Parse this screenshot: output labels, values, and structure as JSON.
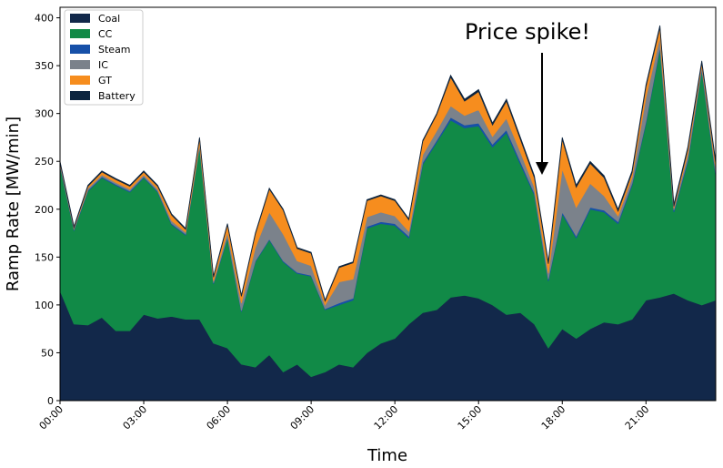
{
  "chart_data": {
    "type": "stacked-area",
    "xlabel": "Time",
    "ylabel": "Ramp Rate [MW/min]",
    "annotation": "Price spike!",
    "legend": "upper left",
    "x": [
      0,
      0.5,
      1,
      1.5,
      2,
      2.5,
      3,
      3.5,
      4,
      4.5,
      5,
      5.5,
      6,
      6.5,
      7,
      7.5,
      8,
      8.5,
      9,
      9.5,
      10,
      10.5,
      11,
      11.5,
      12,
      12.5,
      13,
      13.5,
      14,
      14.5,
      15,
      15.5,
      16,
      16.5,
      17,
      17.5,
      18,
      18.5,
      19,
      19.5,
      20,
      20.5,
      21,
      21.5,
      22,
      22.5,
      23,
      23.5
    ],
    "xlim": [
      0,
      23.5
    ],
    "xticks": [
      {
        "value": 0,
        "label": "00:00"
      },
      {
        "value": 3,
        "label": "03:00"
      },
      {
        "value": 6,
        "label": "06:00"
      },
      {
        "value": 9,
        "label": "09:00"
      },
      {
        "value": 12,
        "label": "12:00"
      },
      {
        "value": 15,
        "label": "15:00"
      },
      {
        "value": 18,
        "label": "18:00"
      },
      {
        "value": 21,
        "label": "21:00"
      }
    ],
    "ylim": [
      0,
      411
    ],
    "yticks": [
      0,
      50,
      100,
      150,
      200,
      250,
      300,
      350,
      400
    ],
    "series": [
      {
        "name": "Coal",
        "color": "#12284a",
        "values": [
          115,
          80,
          79,
          87,
          73,
          73,
          90,
          86,
          88,
          85,
          85,
          60,
          55,
          38,
          35,
          48,
          30,
          38,
          25,
          30,
          38,
          35,
          50,
          60,
          65,
          80,
          92,
          95,
          108,
          110,
          107,
          100,
          90,
          92,
          80,
          55,
          75,
          65,
          75,
          82,
          80,
          85,
          105,
          108,
          112,
          105,
          100,
          105
        ]
      },
      {
        "name": "CC",
        "color": "#118a47",
        "values": [
          130,
          98,
          140,
          146,
          152,
          145,
          143,
          132,
          96,
          88,
          180,
          62,
          115,
          55,
          110,
          120,
          115,
          95,
          105,
          65,
          62,
          70,
          130,
          125,
          118,
          90,
          155,
          175,
          185,
          175,
          180,
          165,
          190,
          155,
          135,
          70,
          120,
          105,
          125,
          115,
          105,
          140,
          185,
          260,
          85,
          145,
          245,
          130
        ]
      },
      {
        "name": "Steam",
        "color": "#1650a8",
        "values": [
          1,
          1,
          1,
          1,
          1,
          1,
          1,
          1,
          1,
          1,
          1,
          1,
          1,
          1,
          1,
          1,
          1,
          1,
          1,
          1,
          2,
          2,
          2,
          2,
          2,
          2,
          2,
          2,
          3,
          3,
          3,
          3,
          3,
          3,
          2,
          2,
          2,
          2,
          2,
          2,
          2,
          2,
          2,
          2,
          2,
          2,
          2,
          2
        ]
      },
      {
        "name": "IC",
        "color": "#7b828b",
        "values": [
          2,
          1,
          2,
          2,
          2,
          2,
          2,
          2,
          3,
          2,
          3,
          2,
          5,
          8,
          14,
          28,
          28,
          12,
          10,
          4,
          22,
          20,
          10,
          10,
          8,
          5,
          8,
          10,
          12,
          10,
          14,
          8,
          12,
          10,
          6,
          6,
          45,
          30,
          25,
          15,
          6,
          6,
          25,
          10,
          2,
          6,
          3,
          6
        ]
      },
      {
        "name": "GT",
        "color": "#f68d1e",
        "values": [
          1,
          1,
          2,
          3,
          3,
          3,
          3,
          3,
          6,
          3,
          5,
          4,
          8,
          7,
          14,
          24,
          25,
          13,
          13,
          4,
          15,
          17,
          17,
          17,
          16,
          12,
          14,
          17,
          30,
          15,
          19,
          12,
          18,
          13,
          10,
          10,
          31,
          21,
          21,
          19,
          5,
          5,
          11,
          10,
          2,
          5,
          3,
          5
        ]
      },
      {
        "name": "Battery",
        "color": "#0d2540",
        "values": [
          1,
          1,
          1,
          1,
          1,
          1,
          1,
          1,
          1,
          1,
          1,
          1,
          1,
          1,
          1,
          1,
          1,
          1,
          1,
          1,
          1,
          1,
          1,
          1,
          1,
          1,
          1,
          1,
          2,
          2,
          2,
          2,
          2,
          2,
          2,
          2,
          2,
          2,
          2,
          2,
          2,
          2,
          2,
          2,
          2,
          2,
          2,
          2
        ]
      }
    ]
  }
}
